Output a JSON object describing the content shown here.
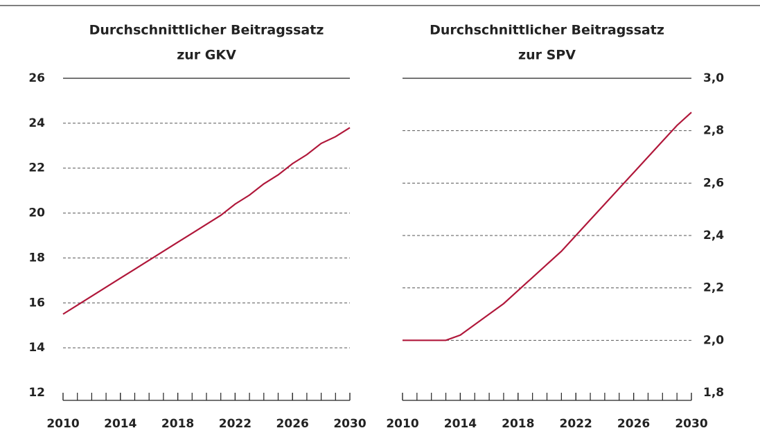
{
  "chart_data": [
    {
      "type": "line",
      "title": [
        "Durchschnittlicher Beitragssatz",
        "zur GKV"
      ],
      "x": [
        2010,
        2011,
        2012,
        2013,
        2014,
        2015,
        2016,
        2017,
        2018,
        2019,
        2020,
        2021,
        2022,
        2023,
        2024,
        2025,
        2026,
        2027,
        2028,
        2029,
        2030
      ],
      "values": [
        15.5,
        15.9,
        16.3,
        16.7,
        17.1,
        17.5,
        17.9,
        18.3,
        18.7,
        19.1,
        19.5,
        19.9,
        20.4,
        20.8,
        21.3,
        21.7,
        22.2,
        22.6,
        23.1,
        23.4,
        23.8
      ],
      "color": "#b0173a",
      "xlim": [
        2010,
        2030
      ],
      "xticks": [
        2010,
        2014,
        2018,
        2022,
        2026,
        2030
      ],
      "ylim": [
        12,
        26
      ],
      "yticks": [
        12,
        14,
        16,
        18,
        20,
        22,
        24,
        26
      ],
      "grid": true,
      "yaxis_side": "left"
    },
    {
      "type": "line",
      "title": [
        "Durchschnittlicher Beitragssatz",
        "zur SPV"
      ],
      "x": [
        2010,
        2011,
        2012,
        2013,
        2014,
        2015,
        2016,
        2017,
        2018,
        2019,
        2020,
        2021,
        2022,
        2023,
        2024,
        2025,
        2026,
        2027,
        2028,
        2029,
        2030
      ],
      "values": [
        2.0,
        2.0,
        2.0,
        2.0,
        2.02,
        2.06,
        2.1,
        2.14,
        2.19,
        2.24,
        2.29,
        2.34,
        2.4,
        2.46,
        2.52,
        2.58,
        2.64,
        2.7,
        2.76,
        2.82,
        2.87
      ],
      "color": "#b0173a",
      "xlim": [
        2010,
        2030
      ],
      "xticks": [
        2010,
        2014,
        2018,
        2022,
        2026,
        2030
      ],
      "ylim": [
        1.8,
        3.0
      ],
      "yticks": [
        {
          "value": 1.8,
          "label": "1,8"
        },
        {
          "value": 2.0,
          "label": "2,0"
        },
        {
          "value": 2.2,
          "label": "2,2"
        },
        {
          "value": 2.4,
          "label": "2,4"
        },
        {
          "value": 2.6,
          "label": "2,6"
        },
        {
          "value": 2.8,
          "label": "2,8"
        },
        {
          "value": 3.0,
          "label": "3,0"
        }
      ],
      "grid": true,
      "yaxis_side": "right"
    }
  ]
}
